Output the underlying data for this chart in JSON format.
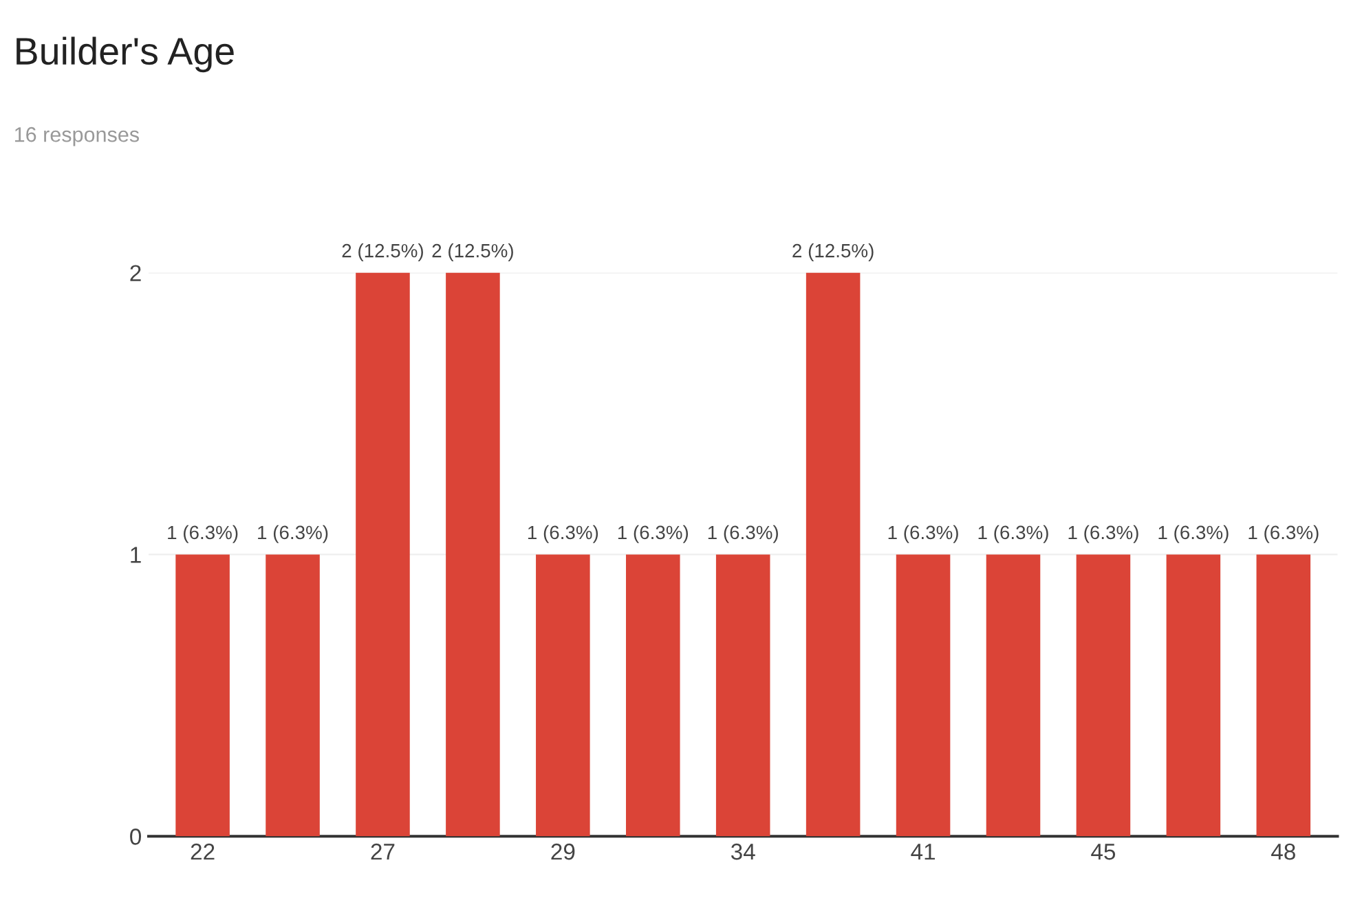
{
  "chart_data": {
    "type": "bar",
    "title": "Builder's Age",
    "subtitle": "16 responses",
    "categories": [
      "22",
      null,
      "27",
      null,
      "29",
      null,
      "34",
      null,
      "41",
      null,
      "45",
      null,
      "48"
    ],
    "values": [
      1,
      1,
      2,
      2,
      1,
      1,
      1,
      2,
      1,
      1,
      1,
      1,
      1
    ],
    "value_labels": [
      "1 (6.3%)",
      "1 (6.3%)",
      "2 (12.5%)",
      "2 (12.5%)",
      "1 (6.3%)",
      "1 (6.3%)",
      "1 (6.3%)",
      "2 (12.5%)",
      "1 (6.3%)",
      "1 (6.3%)",
      "1 (6.3%)",
      "1 (6.3%)",
      "1 (6.3%)"
    ],
    "color": "#db4437",
    "ylim": [
      0,
      2
    ],
    "yticks": [
      0,
      1,
      2
    ],
    "grid": "y",
    "legend": false
  }
}
